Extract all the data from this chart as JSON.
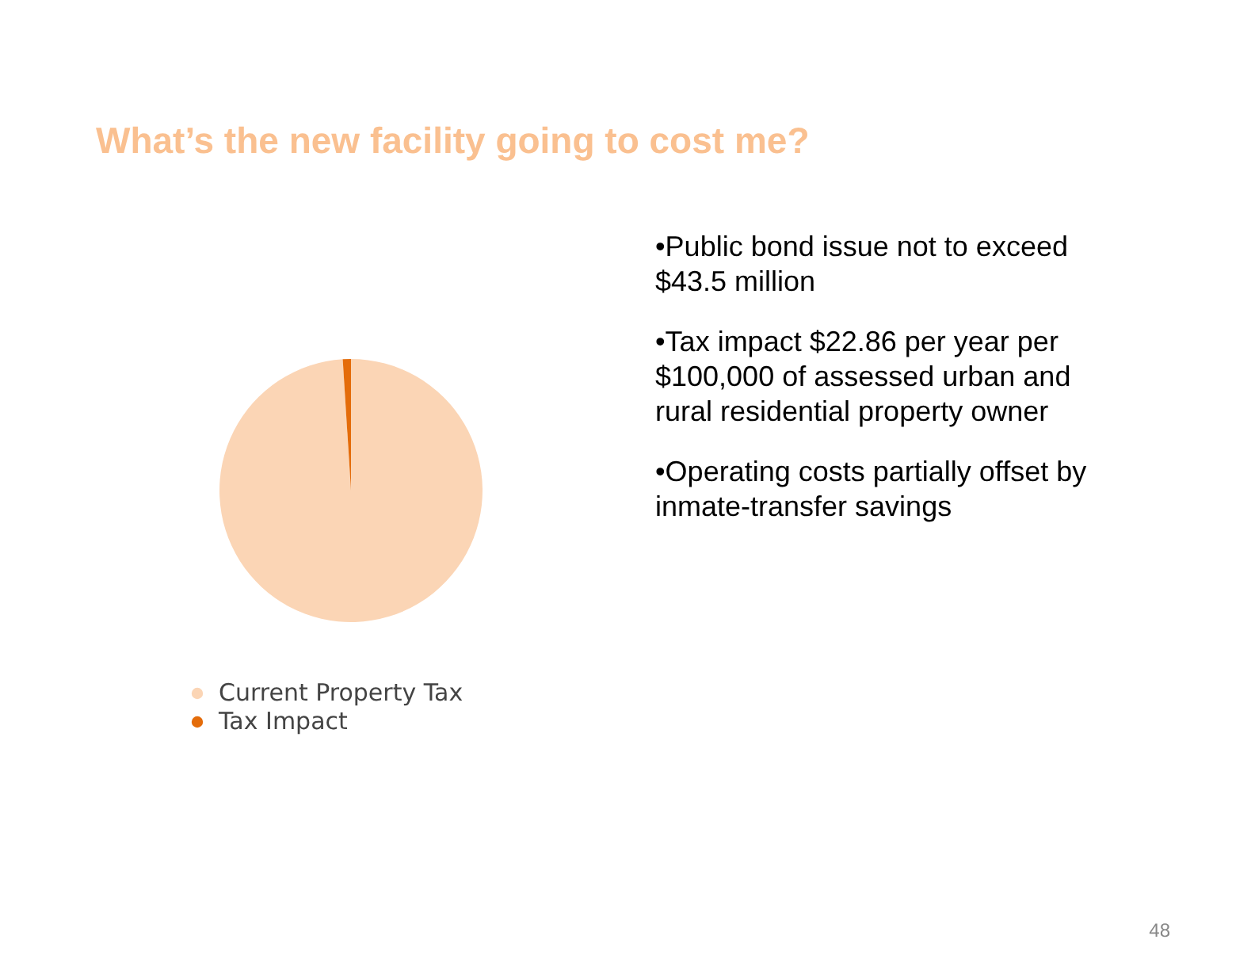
{
  "chart_data": {
    "type": "pie",
    "title": "What’s the new facility going to cost me?",
    "categories": [
      "Current Property Tax",
      "Tax Impact"
    ],
    "values": [
      99,
      1
    ],
    "colors": [
      "#fbd5b5",
      "#e46c0a"
    ],
    "legend": "bottom",
    "annotations": [
      "•Public bond issue not to exceed $43.5 million",
      "•Tax impact $22.86 per year per $100,000 of assessed urban and rural residential property owner",
      "•Operating costs partially offset by inmate-transfer savings",
      "48"
    ]
  }
}
